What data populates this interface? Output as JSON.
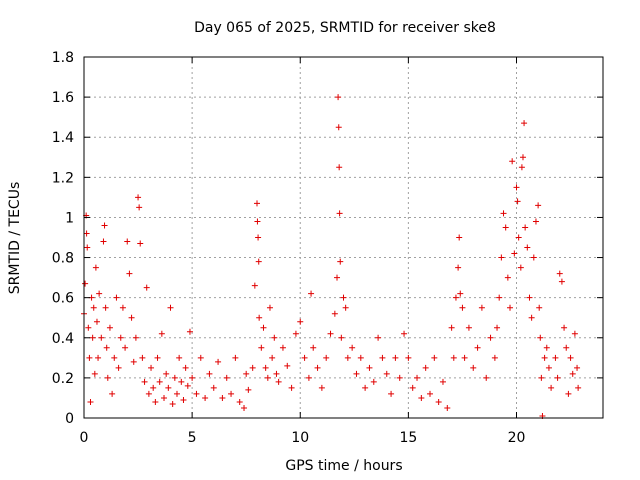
{
  "chart_data": {
    "type": "scatter",
    "title": "Day 065 of 2025, SRMTID for receiver ske8",
    "xlabel": "GPS time / hours",
    "ylabel": "SRMTID / TECUs",
    "xlim": [
      0,
      24
    ],
    "ylim": [
      0,
      1.8
    ],
    "x_ticks": [
      0,
      5,
      10,
      15,
      20
    ],
    "x_tick_labels": [
      "0",
      "5",
      "10",
      "15",
      "20"
    ],
    "y_ticks": [
      0,
      0.2,
      0.4,
      0.6,
      0.8,
      1,
      1.2,
      1.4,
      1.6,
      1.8
    ],
    "y_tick_labels": [
      "0",
      "0.2",
      "0.4",
      "0.6",
      "0.8",
      "1",
      "1.2",
      "1.4",
      "1.6",
      "1.8"
    ],
    "grid": true,
    "marker": "+",
    "series_color": "#e00000",
    "series": [
      {
        "name": "SRMTID",
        "points": [
          [
            0.0,
            0.52
          ],
          [
            0.05,
            0.67
          ],
          [
            0.1,
            1.01
          ],
          [
            0.12,
            0.92
          ],
          [
            0.15,
            0.85
          ],
          [
            0.2,
            0.45
          ],
          [
            0.25,
            0.3
          ],
          [
            0.3,
            0.08
          ],
          [
            0.35,
            0.6
          ],
          [
            0.4,
            0.4
          ],
          [
            0.45,
            0.55
          ],
          [
            0.5,
            0.22
          ],
          [
            0.55,
            0.75
          ],
          [
            0.6,
            0.48
          ],
          [
            0.65,
            0.3
          ],
          [
            0.7,
            0.62
          ],
          [
            0.8,
            0.4
          ],
          [
            0.9,
            0.88
          ],
          [
            0.95,
            0.96
          ],
          [
            1.0,
            0.55
          ],
          [
            1.05,
            0.35
          ],
          [
            1.1,
            0.2
          ],
          [
            1.2,
            0.45
          ],
          [
            1.3,
            0.12
          ],
          [
            1.4,
            0.3
          ],
          [
            1.5,
            0.6
          ],
          [
            1.6,
            0.25
          ],
          [
            1.7,
            0.4
          ],
          [
            1.8,
            0.55
          ],
          [
            1.9,
            0.35
          ],
          [
            2.0,
            0.88
          ],
          [
            2.1,
            0.72
          ],
          [
            2.2,
            0.5
          ],
          [
            2.3,
            0.28
          ],
          [
            2.4,
            0.4
          ],
          [
            2.5,
            1.1
          ],
          [
            2.55,
            1.05
          ],
          [
            2.6,
            0.87
          ],
          [
            2.7,
            0.3
          ],
          [
            2.8,
            0.18
          ],
          [
            2.9,
            0.65
          ],
          [
            3.0,
            0.12
          ],
          [
            3.1,
            0.25
          ],
          [
            3.2,
            0.15
          ],
          [
            3.3,
            0.08
          ],
          [
            3.4,
            0.3
          ],
          [
            3.5,
            0.18
          ],
          [
            3.6,
            0.42
          ],
          [
            3.7,
            0.1
          ],
          [
            3.8,
            0.22
          ],
          [
            3.9,
            0.15
          ],
          [
            4.0,
            0.55
          ],
          [
            4.1,
            0.07
          ],
          [
            4.2,
            0.2
          ],
          [
            4.3,
            0.12
          ],
          [
            4.4,
            0.3
          ],
          [
            4.5,
            0.18
          ],
          [
            4.6,
            0.09
          ],
          [
            4.7,
            0.25
          ],
          [
            4.8,
            0.16
          ],
          [
            4.9,
            0.43
          ],
          [
            5.0,
            0.2
          ],
          [
            5.2,
            0.12
          ],
          [
            5.4,
            0.3
          ],
          [
            5.6,
            0.1
          ],
          [
            5.8,
            0.22
          ],
          [
            6.0,
            0.15
          ],
          [
            6.2,
            0.28
          ],
          [
            6.4,
            0.1
          ],
          [
            6.6,
            0.2
          ],
          [
            6.8,
            0.12
          ],
          [
            7.0,
            0.3
          ],
          [
            7.2,
            0.08
          ],
          [
            7.4,
            0.05
          ],
          [
            7.5,
            0.22
          ],
          [
            7.6,
            0.14
          ],
          [
            7.8,
            0.25
          ],
          [
            7.9,
            0.66
          ],
          [
            8.0,
            1.07
          ],
          [
            8.02,
            0.98
          ],
          [
            8.05,
            0.9
          ],
          [
            8.08,
            0.78
          ],
          [
            8.1,
            0.5
          ],
          [
            8.2,
            0.35
          ],
          [
            8.3,
            0.45
          ],
          [
            8.4,
            0.25
          ],
          [
            8.5,
            0.2
          ],
          [
            8.6,
            0.55
          ],
          [
            8.7,
            0.3
          ],
          [
            8.8,
            0.4
          ],
          [
            8.9,
            0.22
          ],
          [
            9.0,
            0.18
          ],
          [
            9.2,
            0.35
          ],
          [
            9.4,
            0.26
          ],
          [
            9.6,
            0.15
          ],
          [
            9.8,
            0.42
          ],
          [
            10.0,
            0.48
          ],
          [
            10.2,
            0.3
          ],
          [
            10.4,
            0.2
          ],
          [
            10.5,
            0.62
          ],
          [
            10.6,
            0.35
          ],
          [
            10.8,
            0.25
          ],
          [
            11.0,
            0.15
          ],
          [
            11.2,
            0.3
          ],
          [
            11.4,
            0.42
          ],
          [
            11.6,
            0.52
          ],
          [
            11.7,
            0.7
          ],
          [
            11.75,
            1.6
          ],
          [
            11.78,
            1.45
          ],
          [
            11.8,
            1.25
          ],
          [
            11.82,
            1.02
          ],
          [
            11.85,
            0.78
          ],
          [
            11.9,
            0.4
          ],
          [
            12.0,
            0.6
          ],
          [
            12.1,
            0.55
          ],
          [
            12.2,
            0.3
          ],
          [
            12.4,
            0.35
          ],
          [
            12.6,
            0.22
          ],
          [
            12.8,
            0.3
          ],
          [
            13.0,
            0.15
          ],
          [
            13.2,
            0.25
          ],
          [
            13.4,
            0.18
          ],
          [
            13.6,
            0.4
          ],
          [
            13.8,
            0.3
          ],
          [
            14.0,
            0.22
          ],
          [
            14.2,
            0.12
          ],
          [
            14.4,
            0.3
          ],
          [
            14.6,
            0.2
          ],
          [
            14.8,
            0.42
          ],
          [
            15.0,
            0.3
          ],
          [
            15.2,
            0.15
          ],
          [
            15.4,
            0.2
          ],
          [
            15.6,
            0.1
          ],
          [
            15.8,
            0.25
          ],
          [
            16.0,
            0.12
          ],
          [
            16.2,
            0.3
          ],
          [
            16.4,
            0.08
          ],
          [
            16.6,
            0.18
          ],
          [
            16.8,
            0.05
          ],
          [
            17.0,
            0.45
          ],
          [
            17.1,
            0.3
          ],
          [
            17.2,
            0.6
          ],
          [
            17.3,
            0.75
          ],
          [
            17.35,
            0.9
          ],
          [
            17.4,
            0.62
          ],
          [
            17.5,
            0.55
          ],
          [
            17.6,
            0.3
          ],
          [
            17.8,
            0.45
          ],
          [
            18.0,
            0.25
          ],
          [
            18.2,
            0.35
          ],
          [
            18.4,
            0.55
          ],
          [
            18.6,
            0.2
          ],
          [
            18.8,
            0.4
          ],
          [
            19.0,
            0.3
          ],
          [
            19.1,
            0.45
          ],
          [
            19.2,
            0.6
          ],
          [
            19.3,
            0.8
          ],
          [
            19.4,
            1.02
          ],
          [
            19.5,
            0.95
          ],
          [
            19.6,
            0.7
          ],
          [
            19.7,
            0.55
          ],
          [
            19.8,
            1.28
          ],
          [
            19.9,
            0.82
          ],
          [
            20.0,
            1.15
          ],
          [
            20.05,
            1.08
          ],
          [
            20.1,
            0.9
          ],
          [
            20.2,
            0.75
          ],
          [
            20.25,
            1.25
          ],
          [
            20.3,
            1.3
          ],
          [
            20.35,
            1.47
          ],
          [
            20.4,
            0.95
          ],
          [
            20.5,
            0.85
          ],
          [
            20.6,
            0.6
          ],
          [
            20.7,
            0.5
          ],
          [
            20.8,
            0.8
          ],
          [
            20.9,
            0.98
          ],
          [
            21.0,
            1.06
          ],
          [
            21.05,
            0.55
          ],
          [
            21.1,
            0.4
          ],
          [
            21.15,
            0.2
          ],
          [
            21.2,
            0.01
          ],
          [
            21.3,
            0.3
          ],
          [
            21.4,
            0.35
          ],
          [
            21.5,
            0.25
          ],
          [
            21.6,
            0.15
          ],
          [
            21.8,
            0.3
          ],
          [
            21.9,
            0.2
          ],
          [
            22.0,
            0.72
          ],
          [
            22.1,
            0.68
          ],
          [
            22.2,
            0.45
          ],
          [
            22.3,
            0.35
          ],
          [
            22.4,
            0.12
          ],
          [
            22.5,
            0.3
          ],
          [
            22.6,
            0.22
          ],
          [
            22.7,
            0.42
          ],
          [
            22.8,
            0.25
          ],
          [
            22.85,
            0.15
          ]
        ]
      }
    ]
  }
}
